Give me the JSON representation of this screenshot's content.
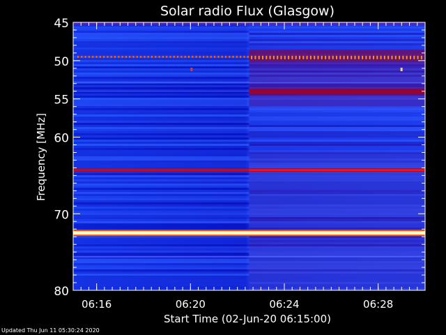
{
  "chart_data": {
    "type": "heatmap",
    "title": "Solar radio Flux (Glasgow)",
    "xlabel": "Start Time (02-Jun-20 06:15:00)",
    "ylabel": "Frequency [MHz]",
    "x_ticks": [
      "06:16",
      "06:20",
      "06:24",
      "06:28"
    ],
    "x_tick_minutes": [
      1,
      5,
      9,
      13
    ],
    "xlim_minutes": [
      0,
      15
    ],
    "y_ticks": [
      "45",
      "50",
      "55",
      "60",
      "70",
      "80"
    ],
    "y_tick_values": [
      45,
      50,
      55,
      60,
      70,
      80
    ],
    "ylim": [
      45,
      80
    ],
    "y_reversed": true,
    "intensity_change_minute": 7.5,
    "bright_bands": [
      {
        "freq": 72.5,
        "level": "saturated"
      },
      {
        "freq": 64.3,
        "level": "strong"
      },
      {
        "freq": 54.0,
        "level": "moderate"
      },
      {
        "freq": 49.5,
        "level": "moderate-interference-pattern"
      }
    ],
    "colors": {
      "low": "#0a10c8",
      "mid": "#3a60ff",
      "high": "#b00000",
      "peak": "#ffff80"
    }
  },
  "footer": "Updated Thu Jun 11 05:30:24 2020"
}
